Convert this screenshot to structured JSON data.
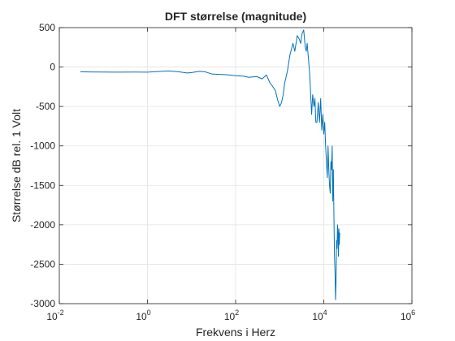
{
  "chart_data": {
    "type": "line",
    "title": "DFT størrelse (magnitude)",
    "xlabel": "Frekvens i Herz",
    "ylabel": "Størrelse dB rel. 1 Volt",
    "xscale": "log",
    "xlim": [
      0.01,
      1000000
    ],
    "ylim": [
      -3000,
      500
    ],
    "grid": true,
    "legend": "none",
    "x_ticks": [
      {
        "value": 0.01,
        "base": "10",
        "exp": "-2"
      },
      {
        "value": 1,
        "base": "10",
        "exp": "0"
      },
      {
        "value": 100,
        "base": "10",
        "exp": "2"
      },
      {
        "value": 10000,
        "base": "10",
        "exp": "4"
      },
      {
        "value": 1000000,
        "base": "10",
        "exp": "6"
      }
    ],
    "y_ticks": [
      500,
      0,
      -500,
      -1000,
      -1500,
      -2000,
      -2500,
      -3000
    ],
    "colors": {
      "line": "#0072BD",
      "grid": "#e3e3e3",
      "axis": "#262626"
    },
    "series": [
      {
        "x": [
          0.03,
          0.05,
          0.1,
          0.2,
          0.5,
          1,
          2,
          3,
          5,
          8,
          10,
          15,
          20,
          30,
          50,
          70,
          100,
          150,
          200,
          300,
          400,
          500,
          600,
          700,
          800,
          900,
          1000,
          1100,
          1200,
          1300,
          1500,
          1700,
          2000,
          2200,
          2500,
          2800,
          3000,
          3200,
          3500,
          3800,
          4000,
          4200,
          4500,
          4800,
          5000,
          5300,
          5600,
          6000,
          6300,
          6600,
          7000,
          7500,
          8000,
          8500,
          9000,
          9500,
          10000,
          10500,
          11000,
          11500,
          12000,
          12500,
          13000,
          13500,
          14000,
          14500,
          15000,
          15500,
          16000,
          16500,
          17000,
          17500,
          18000,
          18500,
          19000,
          19500,
          20000,
          20500,
          21000,
          21500,
          22000,
          22500,
          23000
        ],
        "y": [
          -60,
          -62,
          -63,
          -65,
          -63,
          -65,
          -55,
          -50,
          -60,
          -75,
          -70,
          -55,
          -60,
          -90,
          -95,
          -100,
          -110,
          -115,
          -130,
          -120,
          -150,
          -100,
          -200,
          -250,
          -300,
          -420,
          -500,
          -450,
          -350,
          -200,
          -50,
          150,
          300,
          200,
          400,
          350,
          300,
          420,
          470,
          250,
          200,
          300,
          100,
          -100,
          -300,
          -600,
          -350,
          -500,
          -400,
          -700,
          -700,
          -450,
          -700,
          -400,
          -800,
          -600,
          -850,
          -700,
          -1000,
          -1200,
          -1400,
          -1000,
          -1300,
          -1500,
          -1600,
          -1200,
          -1300,
          -1000,
          -1700,
          -1300,
          -1900,
          -2400,
          -2600,
          -2950,
          -2700,
          -2200,
          -2300,
          -2000,
          -2100,
          -2400,
          -2050,
          -2250,
          -2100
        ]
      }
    ]
  }
}
